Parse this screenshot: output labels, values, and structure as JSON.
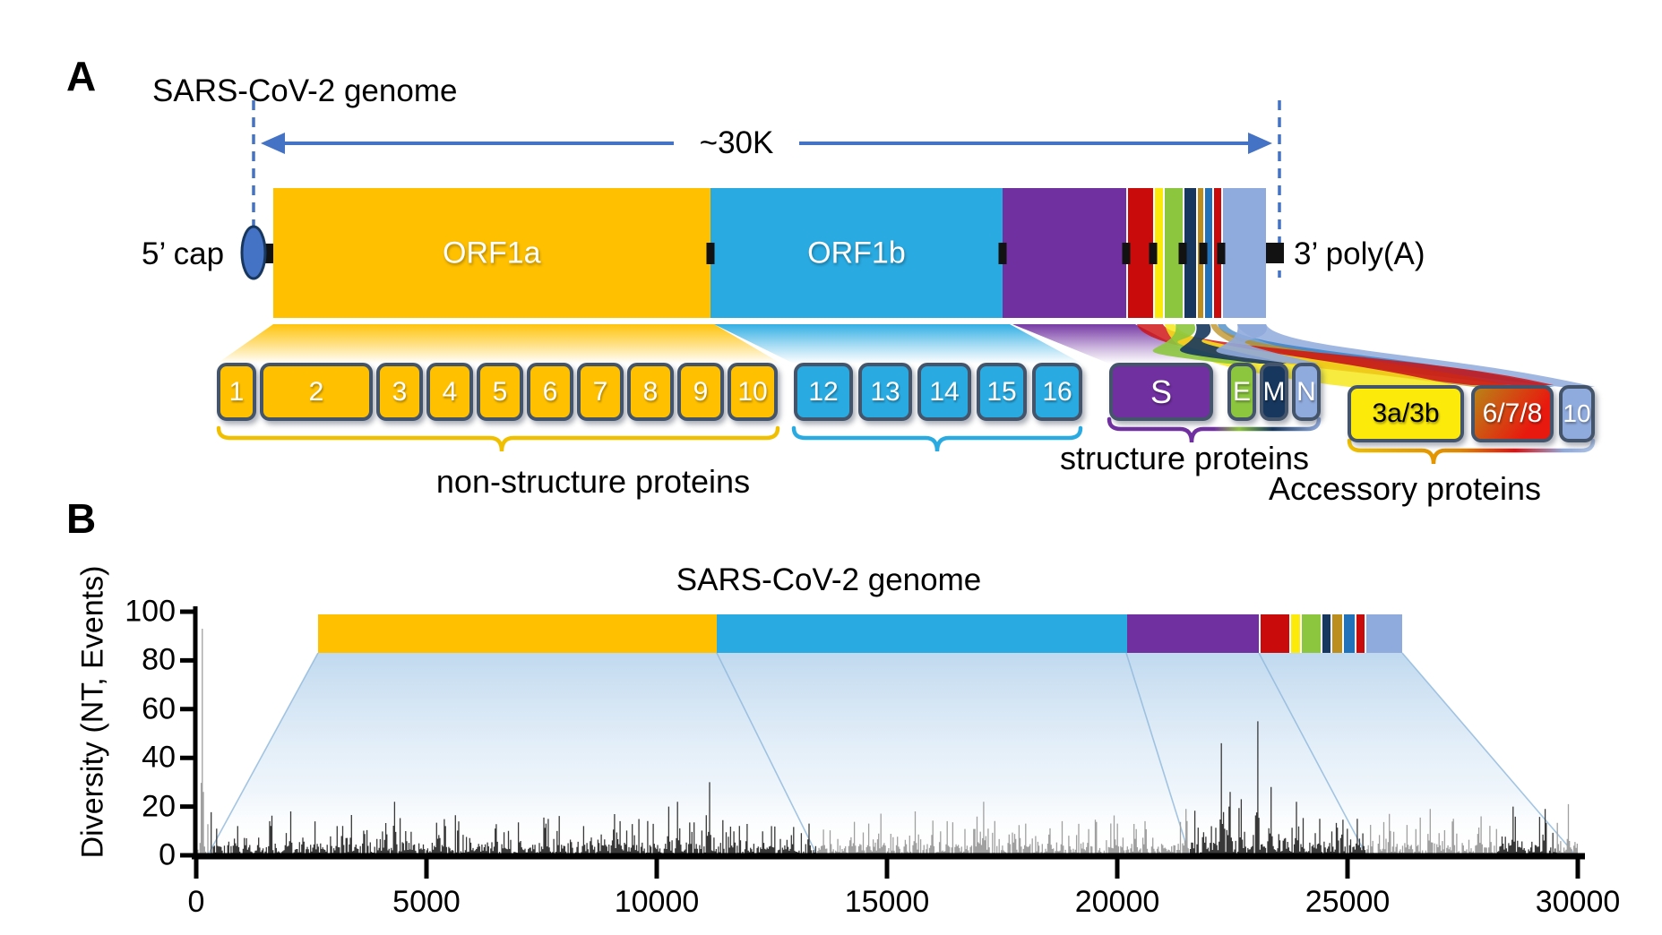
{
  "colors": {
    "orange": "#FFC000",
    "cyan": "#29ABE2",
    "purple": "#7030A0",
    "red": "#C90B0B",
    "yellow": "#FBEA0A",
    "green": "#8CC63E",
    "navy": "#17375E",
    "olive": "#BC8E1E",
    "blue": "#2272B9",
    "lavender": "#8FAADC",
    "box_border": "#44546A",
    "arrow_blue": "#4472C4",
    "cap_fill": "#4472C4",
    "cap_stroke": "#17375E",
    "bracket_nsp_left": "#F0C000",
    "bracket_nsp_right": "#29ABE2",
    "bar_dark": "#383838",
    "bar_light": "#A0A0A0",
    "funnel_fill": "#BDD7EE",
    "funnel_line": "#8FB8DC",
    "text": "#000000"
  },
  "panelA": {
    "label": "A",
    "title": "SARS-CoV-2 genome",
    "arrow_label": "~30K",
    "cap_label": "5’ cap",
    "polya_label": "3’ poly(A)",
    "genome_segments": [
      {
        "name": "orf1a",
        "label": "ORF1a",
        "color": "orange"
      },
      {
        "name": "orf1b",
        "label": "ORF1b",
        "color": "cyan"
      },
      {
        "name": "spike",
        "label": "",
        "color": "purple"
      },
      {
        "name": "seg-red-1",
        "label": "",
        "color": "red"
      },
      {
        "name": "seg-yellow",
        "label": "",
        "color": "yellow"
      },
      {
        "name": "seg-green",
        "label": "",
        "color": "green"
      },
      {
        "name": "seg-navy",
        "label": "",
        "color": "navy"
      },
      {
        "name": "seg-olive",
        "label": "",
        "color": "olive"
      },
      {
        "name": "seg-blue",
        "label": "",
        "color": "blue"
      },
      {
        "name": "seg-red-2",
        "label": "",
        "color": "red"
      },
      {
        "name": "seg-lavender",
        "label": "",
        "color": "lavender"
      }
    ],
    "nsp_boxes": [
      {
        "label": "1",
        "color": "orange"
      },
      {
        "label": "2",
        "color": "orange"
      },
      {
        "label": "3",
        "color": "orange"
      },
      {
        "label": "4",
        "color": "orange"
      },
      {
        "label": "5",
        "color": "orange"
      },
      {
        "label": "6",
        "color": "orange"
      },
      {
        "label": "7",
        "color": "orange"
      },
      {
        "label": "8",
        "color": "orange"
      },
      {
        "label": "9",
        "color": "orange"
      },
      {
        "label": "10",
        "color": "orange"
      },
      {
        "label": "12",
        "color": "cyan"
      },
      {
        "label": "13",
        "color": "cyan"
      },
      {
        "label": "14",
        "color": "cyan"
      },
      {
        "label": "15",
        "color": "cyan"
      },
      {
        "label": "16",
        "color": "cyan"
      }
    ],
    "structural_boxes": [
      {
        "label": "S",
        "color": "purple"
      },
      {
        "label": "E",
        "color": "green"
      },
      {
        "label": "M",
        "color": "navy"
      },
      {
        "label": "N",
        "color": "lavender"
      }
    ],
    "accessory_boxes": [
      {
        "label": "3a/3b",
        "fill": "yellow-solid",
        "text_color": "#000000"
      },
      {
        "label": "6/7/8",
        "fill": "orange-red-gradient",
        "text_color": "#ffffff"
      },
      {
        "label": "10",
        "fill": "lavender",
        "text_color": "#ffffff"
      }
    ],
    "group_labels": {
      "nsp": "non-structure proteins",
      "structural": "structure proteins",
      "accessory": "Accessory proteins"
    }
  },
  "panelB": {
    "label": "B",
    "title": "SARS-CoV-2 genome"
  },
  "chart_data": {
    "type": "bar",
    "title": "SARS-CoV-2 genome",
    "xlabel": "",
    "ylabel": "Diversity (NT, Events)",
    "xlim": [
      0,
      30000
    ],
    "ylim": [
      0,
      100
    ],
    "xticks": [
      0,
      5000,
      10000,
      15000,
      20000,
      25000,
      30000
    ],
    "yticks": [
      0,
      20,
      40,
      60,
      80,
      100
    ],
    "grid": false,
    "series_note": "per-position nucleotide diversity events; dense noise floor 0-12 with localized peaks, strongest cluster across the S gene ~22000-23500",
    "noise_range": [
      0,
      12
    ],
    "peaks": [
      {
        "x": 120,
        "v": 93
      },
      {
        "x": 900,
        "v": 12
      },
      {
        "x": 2050,
        "v": 18
      },
      {
        "x": 3050,
        "v": 12
      },
      {
        "x": 4300,
        "v": 22
      },
      {
        "x": 5400,
        "v": 12
      },
      {
        "x": 6500,
        "v": 11
      },
      {
        "x": 7600,
        "v": 13
      },
      {
        "x": 8400,
        "v": 12
      },
      {
        "x": 9200,
        "v": 14
      },
      {
        "x": 10250,
        "v": 20
      },
      {
        "x": 10450,
        "v": 22
      },
      {
        "x": 11150,
        "v": 30
      },
      {
        "x": 12500,
        "v": 12
      },
      {
        "x": 13300,
        "v": 13
      },
      {
        "x": 14600,
        "v": 13
      },
      {
        "x": 15600,
        "v": 18
      },
      {
        "x": 16300,
        "v": 14
      },
      {
        "x": 17100,
        "v": 22
      },
      {
        "x": 18000,
        "v": 13
      },
      {
        "x": 18800,
        "v": 14
      },
      {
        "x": 20000,
        "v": 13
      },
      {
        "x": 20600,
        "v": 14
      },
      {
        "x": 21500,
        "v": 19
      },
      {
        "x": 22250,
        "v": 46
      },
      {
        "x": 22450,
        "v": 26
      },
      {
        "x": 22700,
        "v": 23
      },
      {
        "x": 23050,
        "v": 55
      },
      {
        "x": 23350,
        "v": 28
      },
      {
        "x": 23900,
        "v": 22
      },
      {
        "x": 24400,
        "v": 15
      },
      {
        "x": 25200,
        "v": 15
      },
      {
        "x": 25900,
        "v": 17
      },
      {
        "x": 26800,
        "v": 19
      },
      {
        "x": 27300,
        "v": 15
      },
      {
        "x": 27900,
        "v": 16
      },
      {
        "x": 28600,
        "v": 20
      },
      {
        "x": 29300,
        "v": 19
      },
      {
        "x": 29800,
        "v": 21
      }
    ],
    "shade_regions": [
      {
        "from": 0,
        "to": 300,
        "shade": "light"
      },
      {
        "from": 300,
        "to": 13468,
        "shade": "dark"
      },
      {
        "from": 13468,
        "to": 21555,
        "shade": "light"
      },
      {
        "from": 21555,
        "to": 25384,
        "shade": "dark"
      },
      {
        "from": 25384,
        "to": 28259,
        "shade": "light"
      },
      {
        "from": 28259,
        "to": 29533,
        "shade": "dark"
      },
      {
        "from": 29533,
        "to": 30000,
        "shade": "light"
      }
    ]
  }
}
